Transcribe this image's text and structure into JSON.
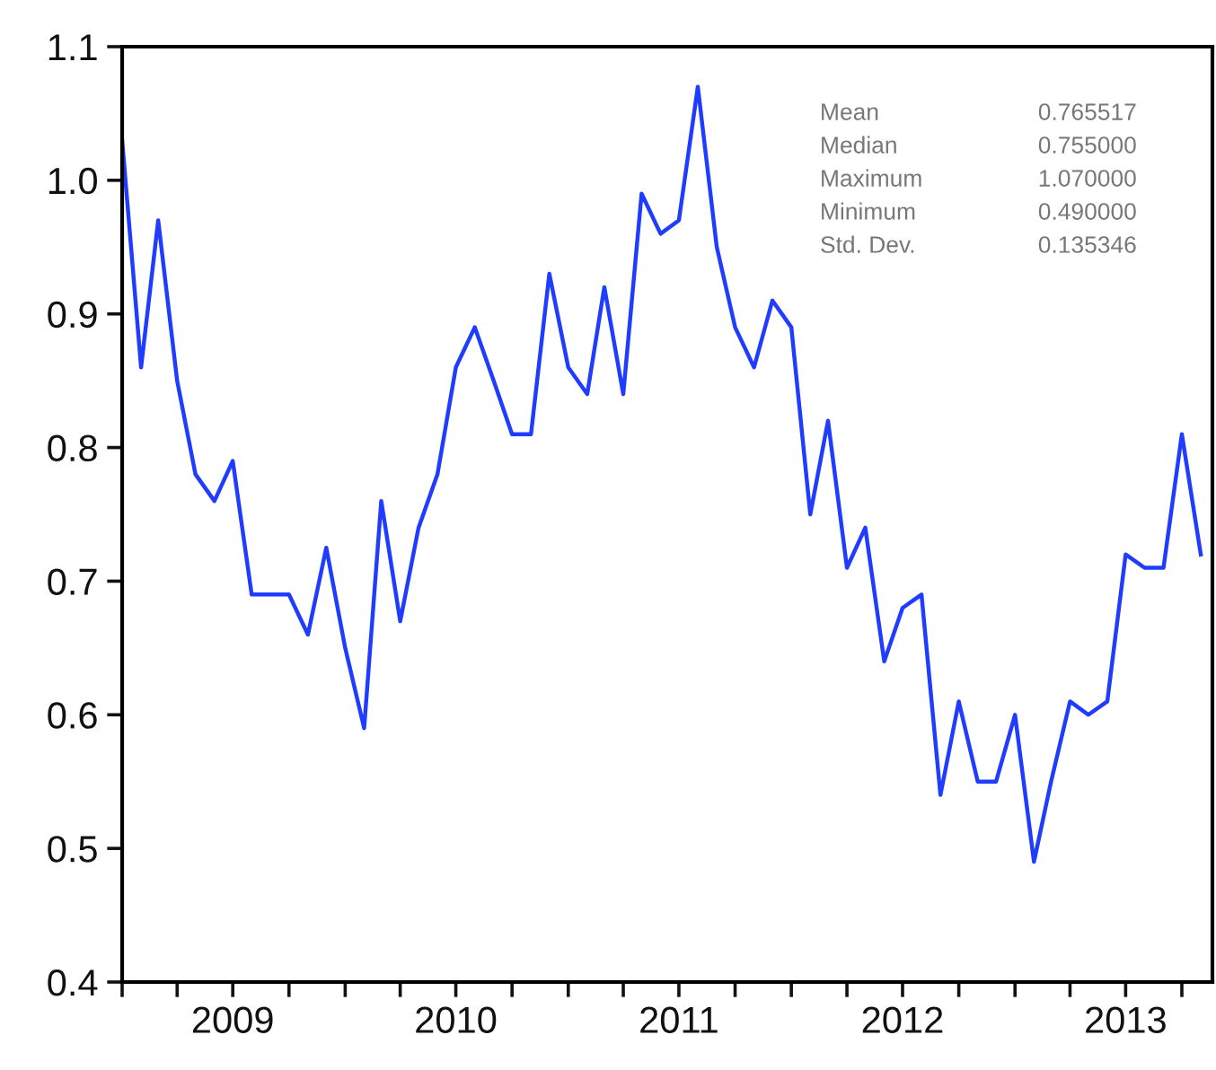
{
  "chart_data": {
    "type": "line",
    "x": [
      "2009-01",
      "2009-02",
      "2009-03",
      "2009-04",
      "2009-05",
      "2009-06",
      "2009-07",
      "2009-08",
      "2009-09",
      "2009-10",
      "2009-11",
      "2009-12",
      "2010-01",
      "2010-02",
      "2010-03",
      "2010-04",
      "2010-05",
      "2010-06",
      "2010-07",
      "2010-08",
      "2010-09",
      "2010-10",
      "2010-11",
      "2010-12",
      "2011-01",
      "2011-02",
      "2011-03",
      "2011-04",
      "2011-05",
      "2011-06",
      "2011-07",
      "2011-08",
      "2011-09",
      "2011-10",
      "2011-11",
      "2011-12",
      "2012-01",
      "2012-02",
      "2012-03",
      "2012-04",
      "2012-05",
      "2012-06",
      "2012-07",
      "2012-08",
      "2012-09",
      "2012-10",
      "2012-11",
      "2012-12",
      "2013-01",
      "2013-02",
      "2013-03",
      "2013-04",
      "2013-05",
      "2013-06",
      "2013-07",
      "2013-08",
      "2013-09",
      "2013-10",
      "2013-11"
    ],
    "series": [
      {
        "color": "#1f3cff",
        "values": [
          1.03,
          0.86,
          0.97,
          0.85,
          0.78,
          0.76,
          0.79,
          0.69,
          0.69,
          0.69,
          0.66,
          0.725,
          0.65,
          0.59,
          0.76,
          0.67,
          0.74,
          0.78,
          0.86,
          0.89,
          0.85,
          0.81,
          0.81,
          0.93,
          0.86,
          0.84,
          0.92,
          0.84,
          0.99,
          0.96,
          0.97,
          1.07,
          0.95,
          0.89,
          0.86,
          0.91,
          0.89,
          0.75,
          0.82,
          0.71,
          0.74,
          0.64,
          0.68,
          0.69,
          0.54,
          0.61,
          0.55,
          0.55,
          0.6,
          0.49,
          0.55,
          0.61,
          0.6,
          0.61,
          0.72,
          0.71,
          0.71,
          0.81,
          0.72
        ]
      }
    ],
    "xlim": [
      "2009-01-01",
      "2013-11-20"
    ],
    "xticks": [
      {
        "value": "2009-01",
        "label": null
      },
      {
        "value": "2009-04",
        "label": null
      },
      {
        "value": "2009-07",
        "label": "2009"
      },
      {
        "value": "2009-10",
        "label": null
      },
      {
        "value": "2010-01",
        "label": null
      },
      {
        "value": "2010-04",
        "label": null
      },
      {
        "value": "2010-07",
        "label": "2010"
      },
      {
        "value": "2010-10",
        "label": null
      },
      {
        "value": "2011-01",
        "label": null
      },
      {
        "value": "2011-04",
        "label": null
      },
      {
        "value": "2011-07",
        "label": "2011"
      },
      {
        "value": "2011-10",
        "label": null
      },
      {
        "value": "2012-01",
        "label": null
      },
      {
        "value": "2012-04",
        "label": null
      },
      {
        "value": "2012-07",
        "label": "2012"
      },
      {
        "value": "2012-10",
        "label": null
      },
      {
        "value": "2013-01",
        "label": null
      },
      {
        "value": "2013-04",
        "label": null
      },
      {
        "value": "2013-07",
        "label": "2013"
      },
      {
        "value": "2013-10",
        "label": null
      }
    ],
    "ylim": [
      0.4,
      1.1
    ],
    "yticks": [
      {
        "value": 0.4,
        "label": "0.4"
      },
      {
        "value": 0.5,
        "label": "0.5"
      },
      {
        "value": 0.6,
        "label": "0.6"
      },
      {
        "value": 0.7,
        "label": "0.7"
      },
      {
        "value": 0.8,
        "label": "0.8"
      },
      {
        "value": 0.9,
        "label": "0.9"
      },
      {
        "value": 1.0,
        "label": "1.0"
      },
      {
        "value": 1.1,
        "label": "1.1"
      }
    ],
    "grid": false,
    "legend": false,
    "marker": "none",
    "line_style": "solid",
    "annotations": [
      "Mean",
      "0.765517",
      "Median",
      "0.755000",
      "Maximum",
      "1.070000",
      "Minimum",
      "0.490000",
      "Std. Dev.",
      "0.135346"
    ]
  }
}
